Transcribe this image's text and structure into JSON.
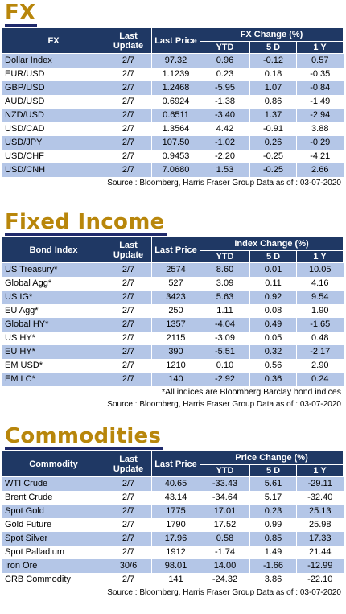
{
  "fx": {
    "title": "FX",
    "headers": {
      "index": "FX",
      "update": "Last Update",
      "price": "Last Price",
      "change": "FX Change (%)",
      "ytd": "YTD",
      "d5": "5 D",
      "y1": "1 Y"
    },
    "rows": [
      {
        "name": "Dollar Index",
        "date": "2/7",
        "price": "97.32",
        "ytd": "0.96",
        "d5": "-0.12",
        "y1": "0.57"
      },
      {
        "name": "EUR/USD",
        "date": "2/7",
        "price": "1.1239",
        "ytd": "0.23",
        "d5": "0.18",
        "y1": "-0.35"
      },
      {
        "name": "GBP/USD",
        "date": "2/7",
        "price": "1.2468",
        "ytd": "-5.95",
        "d5": "1.07",
        "y1": "-0.84"
      },
      {
        "name": "AUD/USD",
        "date": "2/7",
        "price": "0.6924",
        "ytd": "-1.38",
        "d5": "0.86",
        "y1": "-1.49"
      },
      {
        "name": "NZD/USD",
        "date": "2/7",
        "price": "0.6511",
        "ytd": "-3.40",
        "d5": "1.37",
        "y1": "-2.94"
      },
      {
        "name": "USD/CAD",
        "date": "2/7",
        "price": "1.3564",
        "ytd": "4.42",
        "d5": "-0.91",
        "y1": "3.88"
      },
      {
        "name": "USD/JPY",
        "date": "2/7",
        "price": "107.50",
        "ytd": "-1.02",
        "d5": "0.26",
        "y1": "-0.29"
      },
      {
        "name": "USD/CHF",
        "date": "2/7",
        "price": "0.9453",
        "ytd": "-2.20",
        "d5": "-0.25",
        "y1": "-4.21"
      },
      {
        "name": "USD/CNH",
        "date": "2/7",
        "price": "7.0680",
        "ytd": "1.53",
        "d5": "-0.25",
        "y1": "2.66"
      }
    ],
    "source": "Source : Bloomberg, Harris Fraser Group Data as of : 03-07-2020"
  },
  "fixed_income": {
    "title": "Fixed Income",
    "headers": {
      "index": "Bond Index",
      "update": "Last Update",
      "price": "Last Price",
      "change": "Index Change (%)",
      "ytd": "YTD",
      "d5": "5 D",
      "y1": "1 Y"
    },
    "rows": [
      {
        "name": "US Treasury*",
        "date": "2/7",
        "price": "2574",
        "ytd": "8.60",
        "d5": "0.01",
        "y1": "10.05"
      },
      {
        "name": "Global Agg*",
        "date": "2/7",
        "price": "527",
        "ytd": "3.09",
        "d5": "0.11",
        "y1": "4.16"
      },
      {
        "name": "US IG*",
        "date": "2/7",
        "price": "3423",
        "ytd": "5.63",
        "d5": "0.92",
        "y1": "9.54"
      },
      {
        "name": "EU Agg*",
        "date": "2/7",
        "price": "250",
        "ytd": "1.11",
        "d5": "0.08",
        "y1": "1.90"
      },
      {
        "name": "Global HY*",
        "date": "2/7",
        "price": "1357",
        "ytd": "-4.04",
        "d5": "0.49",
        "y1": "-1.65"
      },
      {
        "name": "US HY*",
        "date": "2/7",
        "price": "2115",
        "ytd": "-3.09",
        "d5": "0.05",
        "y1": "0.48"
      },
      {
        "name": "EU HY*",
        "date": "2/7",
        "price": "390",
        "ytd": "-5.51",
        "d5": "0.32",
        "y1": "-2.17"
      },
      {
        "name": "EM USD*",
        "date": "2/7",
        "price": "1210",
        "ytd": "0.10",
        "d5": "0.56",
        "y1": "2.90"
      },
      {
        "name": "EM LC*",
        "date": "2/7",
        "price": "140",
        "ytd": "-2.92",
        "d5": "0.36",
        "y1": "0.24"
      }
    ],
    "note": "*All indices are Bloomberg Barclay bond indices",
    "source": "Source : Bloomberg, Harris Fraser Group Data as of : 03-07-2020"
  },
  "commodities": {
    "title": "Commodities",
    "headers": {
      "index": "Commodity",
      "update": "Last Update",
      "price": "Last Price",
      "change": "Price Change (%)",
      "ytd": "YTD",
      "d5": "5 D",
      "y1": "1 Y"
    },
    "rows": [
      {
        "name": "WTI Crude",
        "date": "2/7",
        "price": "40.65",
        "ytd": "-33.43",
        "d5": "5.61",
        "y1": "-29.11"
      },
      {
        "name": "Brent Crude",
        "date": "2/7",
        "price": "43.14",
        "ytd": "-34.64",
        "d5": "5.17",
        "y1": "-32.40"
      },
      {
        "name": "Spot Gold",
        "date": "2/7",
        "price": "1775",
        "ytd": "17.01",
        "d5": "0.23",
        "y1": "25.13"
      },
      {
        "name": "Gold Future",
        "date": "2/7",
        "price": "1790",
        "ytd": "17.52",
        "d5": "0.99",
        "y1": "25.98"
      },
      {
        "name": "Spot Silver",
        "date": "2/7",
        "price": "17.96",
        "ytd": "0.58",
        "d5": "0.85",
        "y1": "17.33"
      },
      {
        "name": "Spot Palladium",
        "date": "2/7",
        "price": "1912",
        "ytd": "-1.74",
        "d5": "1.49",
        "y1": "21.44"
      },
      {
        "name": "Iron Ore",
        "date": "30/6",
        "price": "98.01",
        "ytd": "14.00",
        "d5": "-1.66",
        "y1": "-12.99"
      },
      {
        "name": "CRB Commodity",
        "date": "2/7",
        "price": "141",
        "ytd": "-24.32",
        "d5": "3.86",
        "y1": "-22.10"
      }
    ],
    "source": "Source : Bloomberg, Harris Fraser Group Data as of : 03-07-2020"
  }
}
